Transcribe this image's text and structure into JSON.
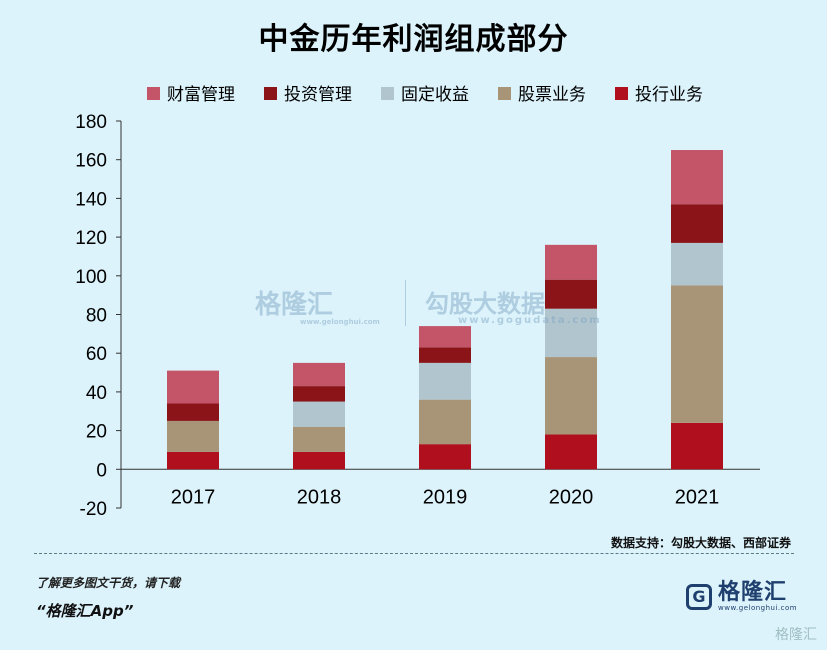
{
  "title": "中金历年利润组成部分",
  "chart_data": {
    "type": "bar",
    "stacked": true,
    "title": "中金历年利润组成部分",
    "categories": [
      "2017",
      "2018",
      "2019",
      "2020",
      "2021"
    ],
    "series": [
      {
        "name": "投行业务",
        "color": "#b0101e",
        "values": [
          9,
          9,
          13,
          18,
          24
        ]
      },
      {
        "name": "股票业务",
        "color": "#a89476",
        "values": [
          16,
          13,
          23,
          40,
          71
        ]
      },
      {
        "name": "固定收益",
        "color": "#b1c5cf",
        "values": [
          0,
          13,
          19,
          25,
          22
        ]
      },
      {
        "name": "投资管理",
        "color": "#8a1418",
        "values": [
          9,
          8,
          8,
          15,
          20
        ]
      },
      {
        "name": "财富管理",
        "color": "#c45468",
        "values": [
          17,
          12,
          11,
          18,
          28
        ]
      }
    ],
    "legend_order": [
      "财富管理",
      "投资管理",
      "固定收益",
      "股票业务",
      "投行业务"
    ],
    "ylim": [
      -20,
      180
    ],
    "yticks": [
      -20,
      0,
      20,
      40,
      60,
      80,
      100,
      120,
      140,
      160,
      180
    ],
    "legend_position": "top",
    "grid": false
  },
  "source": "数据支持：勾股大数据、西部证券",
  "footer": {
    "line1": "了解更多图文干货，请下载",
    "line2": "“格隆汇App”"
  },
  "logo": {
    "mark": "G",
    "name": "格隆汇",
    "url": "www.gelonghui.com"
  },
  "watermark": {
    "left_name": "格隆汇",
    "left_url": "www.gelonghui.com",
    "right_name": "勾股大数据",
    "right_url": "www.gogudata.com"
  },
  "corner_mark": "格隆汇"
}
